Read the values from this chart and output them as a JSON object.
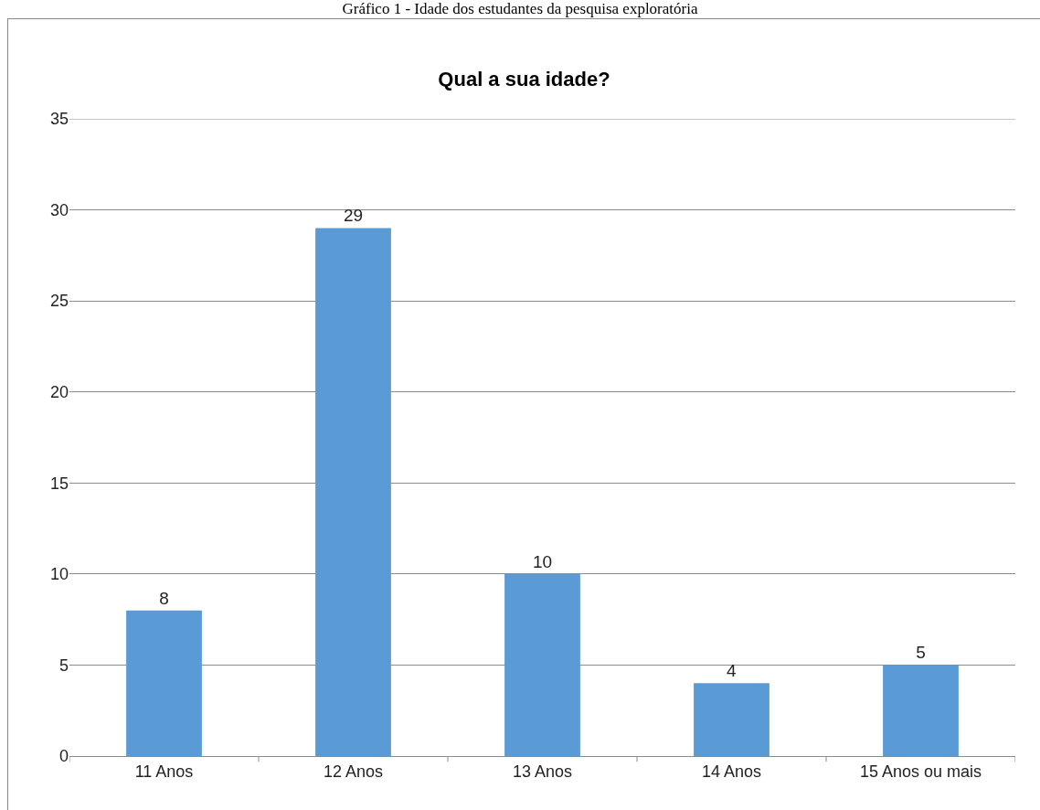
{
  "chart_data": {
    "type": "bar",
    "title": "Qual a sua idade?",
    "annotations": [
      "Gráfico 1 - Idade dos estudantes da pesquisa exploratória"
    ],
    "categories": [
      "11 Anos",
      "12 Anos",
      "13 Anos",
      "14 Anos",
      "15 Anos ou mais"
    ],
    "values": [
      8,
      29,
      10,
      4,
      5
    ],
    "color": "#5b9bd5",
    "ylim": [
      0,
      35
    ],
    "yticks": [
      0,
      5,
      10,
      15,
      20,
      25,
      30,
      35
    ],
    "grid": "y",
    "data_labels": true
  }
}
